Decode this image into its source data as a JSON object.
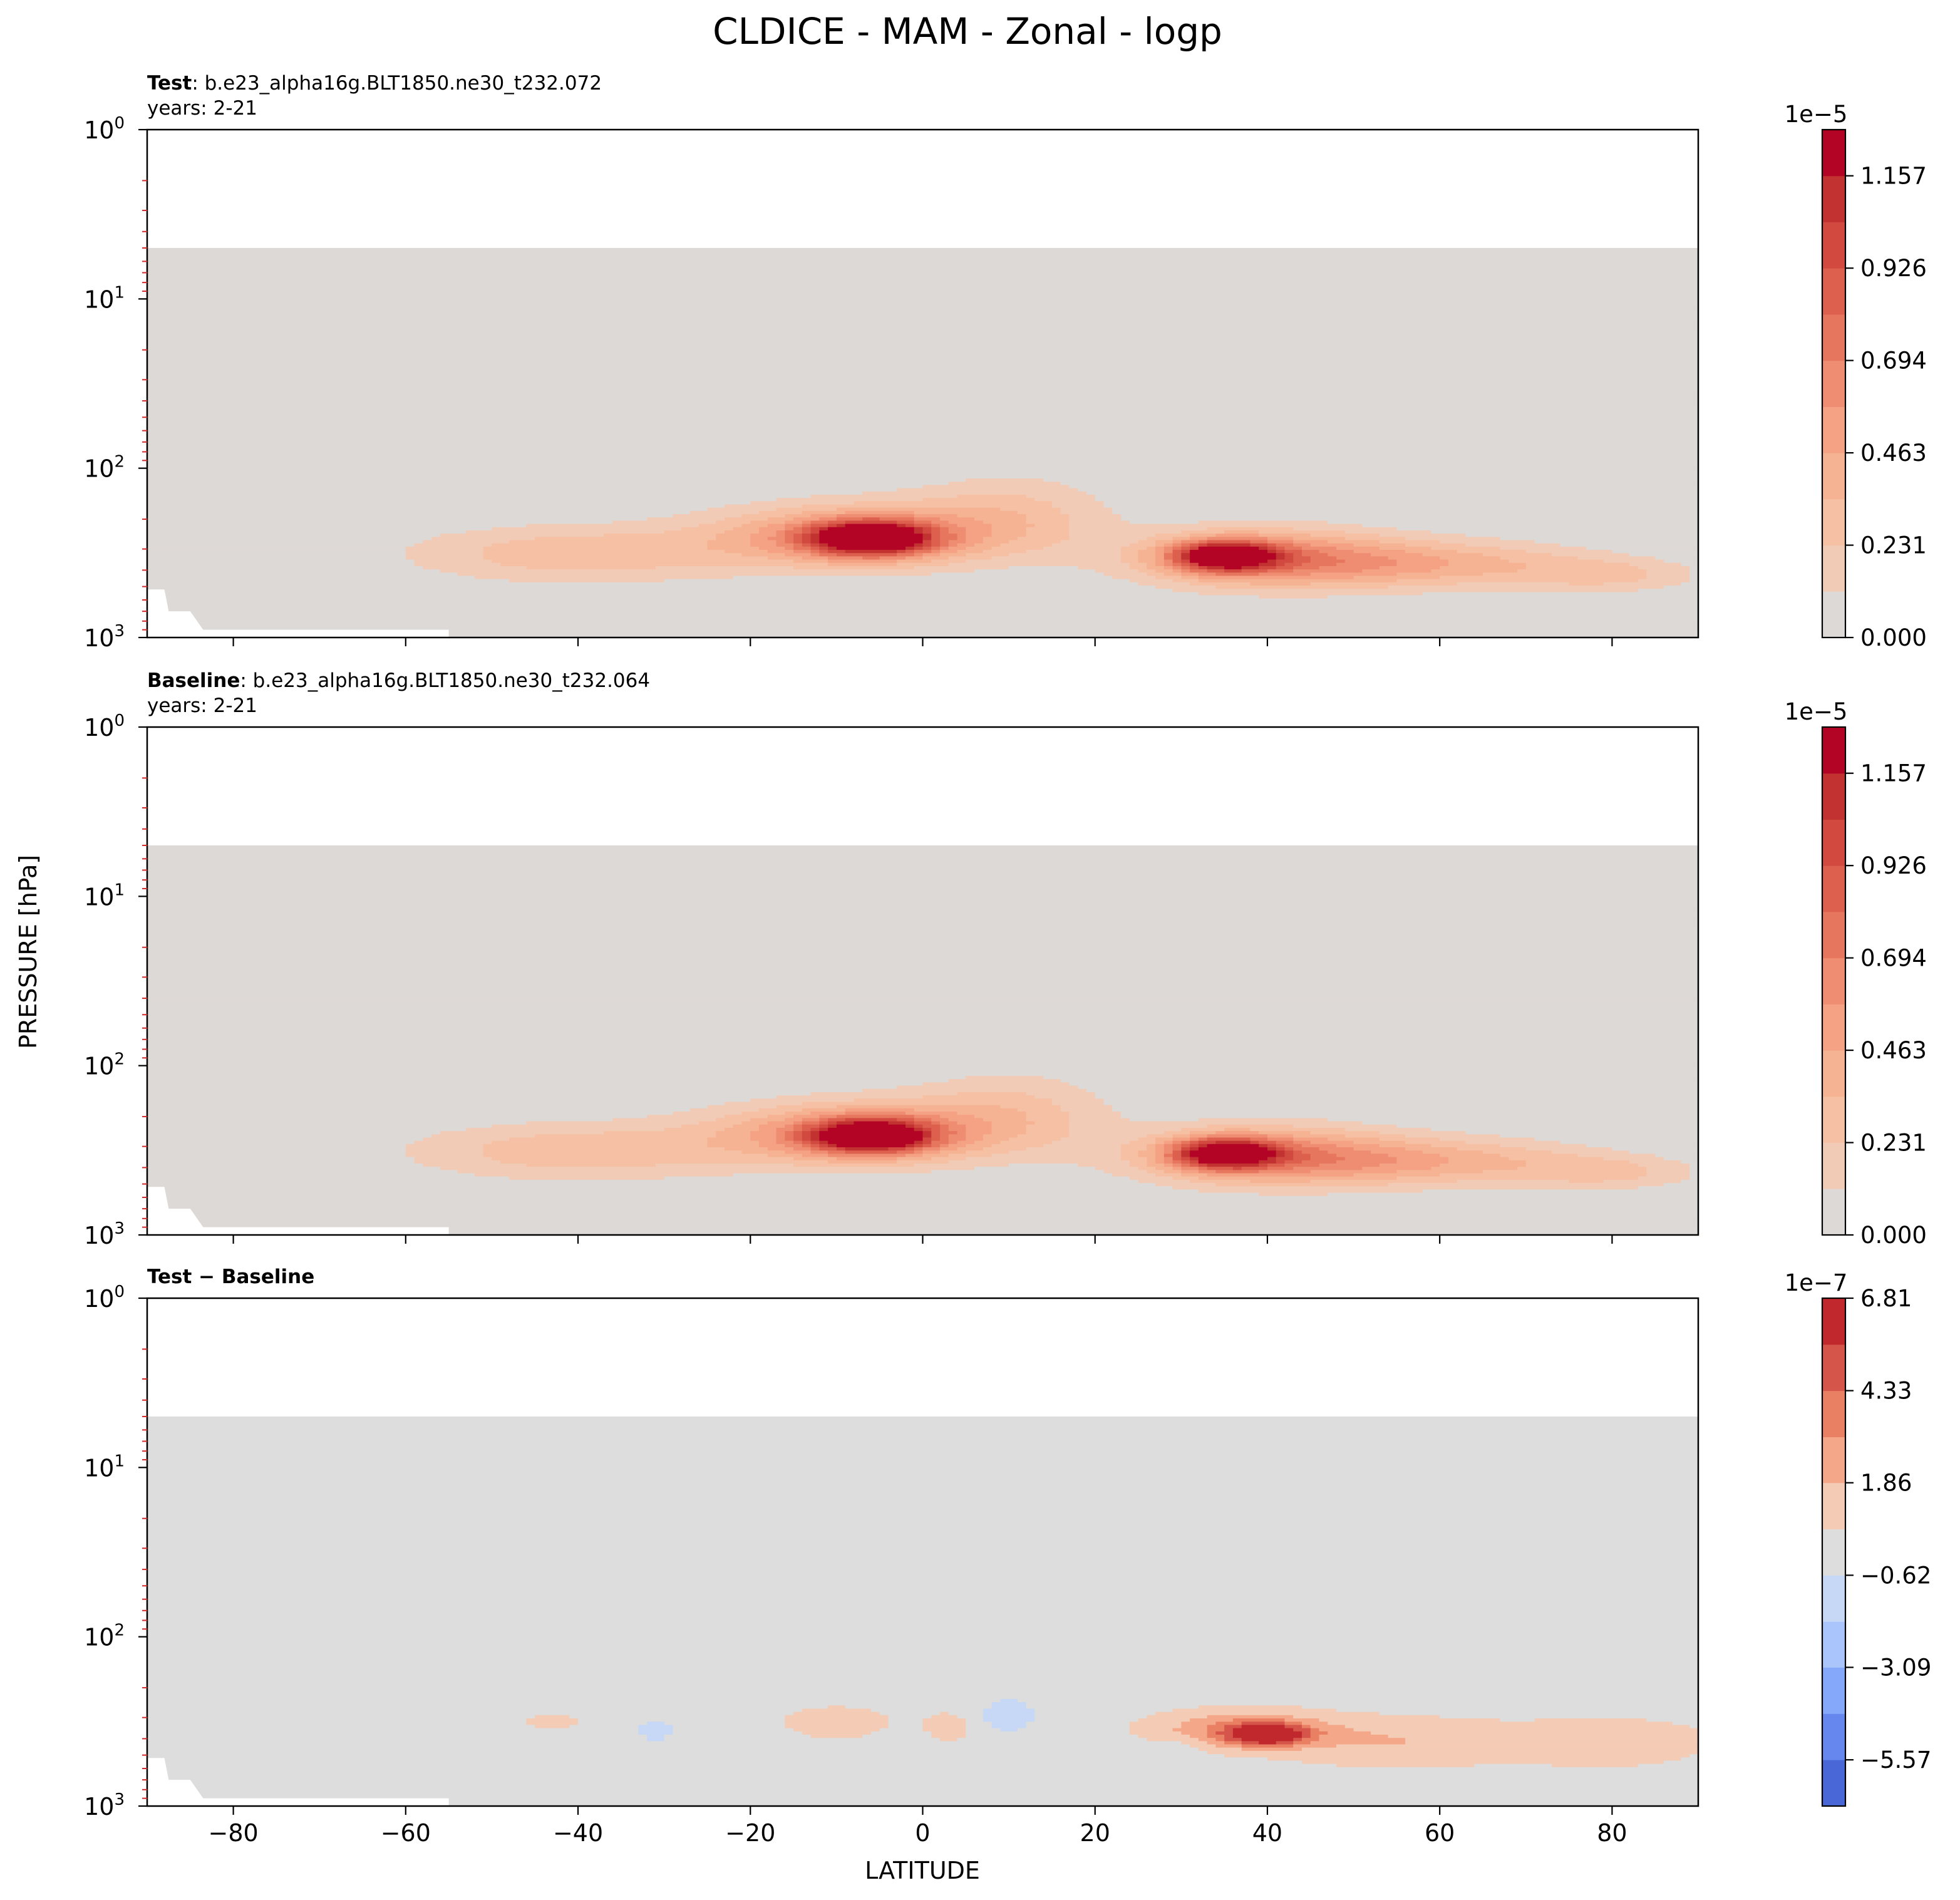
{
  "figure": {
    "title": "CLDICE - MAM - Zonal - logp",
    "ylabel": "PRESSURE [hPa]",
    "xlabel": "LATITUDE"
  },
  "colors": {
    "background_field": "#e1dcd7",
    "diff_background": "#dddddd",
    "frame": "#000000",
    "minor_tick": "#d62728"
  },
  "chart_data": [
    {
      "type": "heatmap",
      "panel": "test",
      "label_bold": "Test",
      "case": ": b.e23_alpha16g.BLT1850.ne30_t232.072",
      "years": "years: 2-21",
      "x": {
        "label": "LATITUDE",
        "lim": [
          -90,
          90
        ],
        "ticks": [
          -80,
          -60,
          -40,
          -20,
          0,
          20,
          40,
          60,
          80
        ]
      },
      "y": {
        "label": "PRESSURE [hPa]",
        "scale": "log",
        "inverted": true,
        "lim": [
          1,
          1000
        ],
        "tick_labels": [
          "10^0",
          "10^1",
          "10^2",
          "10^3"
        ]
      },
      "data_top_hPa": 5,
      "colorbar": {
        "multiplier": "1e−5",
        "tick_labels": [
          "0.000",
          "0.231",
          "0.463",
          "0.694",
          "0.926",
          "1.157"
        ],
        "levels": [
          0,
          0.1157,
          0.2314,
          0.3471,
          0.4628,
          0.5785,
          0.6942,
          0.8099,
          0.9256,
          1.0413,
          1.157,
          1.2727
        ],
        "colors": [
          "#ddd9d6",
          "#f2cbb7",
          "#f5c0a3",
          "#f6b393",
          "#f4a283",
          "#ee8d71",
          "#e7765f",
          "#dd604f",
          "#d1493f",
          "#c23231",
          "#b40426"
        ]
      },
      "maxima": [
        {
          "lat": -6,
          "pressure_hPa": 260,
          "value": 1.2
        },
        {
          "lat": 35,
          "pressure_hPa": 330,
          "value": 1.15
        }
      ]
    },
    {
      "type": "heatmap",
      "panel": "baseline",
      "label_bold": "Baseline",
      "case": ": b.e23_alpha16g.BLT1850.ne30_t232.064",
      "years": "years: 2-21",
      "x": {
        "label": "LATITUDE",
        "lim": [
          -90,
          90
        ],
        "ticks": [
          -80,
          -60,
          -40,
          -20,
          0,
          20,
          40,
          60,
          80
        ]
      },
      "y": {
        "label": "PRESSURE [hPa]",
        "scale": "log",
        "inverted": true,
        "lim": [
          1,
          1000
        ],
        "tick_labels": [
          "10^0",
          "10^1",
          "10^2",
          "10^3"
        ]
      },
      "data_top_hPa": 5,
      "colorbar": {
        "multiplier": "1e−5",
        "tick_labels": [
          "0.000",
          "0.231",
          "0.463",
          "0.694",
          "0.926",
          "1.157"
        ],
        "levels": [
          0,
          0.1157,
          0.2314,
          0.3471,
          0.4628,
          0.5785,
          0.6942,
          0.8099,
          0.9256,
          1.0413,
          1.157,
          1.2727
        ],
        "colors": [
          "#ddd9d6",
          "#f2cbb7",
          "#f5c0a3",
          "#f6b393",
          "#f4a283",
          "#ee8d71",
          "#e7765f",
          "#dd604f",
          "#d1493f",
          "#c23231",
          "#b40426"
        ]
      },
      "maxima": [
        {
          "lat": -6,
          "pressure_hPa": 260,
          "value": 1.2
        },
        {
          "lat": 35,
          "pressure_hPa": 330,
          "value": 1.12
        }
      ]
    },
    {
      "type": "heatmap",
      "panel": "difference",
      "label_bold": "Test − Baseline",
      "x": {
        "label": "LATITUDE",
        "lim": [
          -90,
          90
        ],
        "ticks": [
          -80,
          -60,
          -40,
          -20,
          0,
          20,
          40,
          60,
          80
        ],
        "tick_labels": [
          "−80",
          "−60",
          "−40",
          "−20",
          "0",
          "20",
          "40",
          "60",
          "80"
        ]
      },
      "y": {
        "label": "PRESSURE [hPa]",
        "scale": "log",
        "inverted": true,
        "lim": [
          1,
          1000
        ],
        "tick_labels": [
          "10^0",
          "10^1",
          "10^2",
          "10^3"
        ]
      },
      "data_top_hPa": 5,
      "colorbar": {
        "multiplier": "1e−7",
        "tick_labels": [
          "−5.57",
          "−3.09",
          "−0.62",
          "1.86",
          "4.33",
          "6.81"
        ],
        "levels": [
          -6.81,
          -5.57,
          -4.33,
          -3.09,
          -1.86,
          -0.62,
          0.62,
          1.86,
          3.09,
          4.33,
          5.57,
          6.81
        ],
        "colors": [
          "#4a67d8",
          "#6688ee",
          "#85a8fa",
          "#a9c5fc",
          "#c6d8f6",
          "#dddddd",
          "#f4cbb5",
          "#f5a889",
          "#e98064",
          "#d6554a",
          "#c0282d"
        ]
      },
      "maxima": [
        {
          "lat": 40,
          "pressure_hPa": 380,
          "value": 6.5
        }
      ]
    }
  ]
}
